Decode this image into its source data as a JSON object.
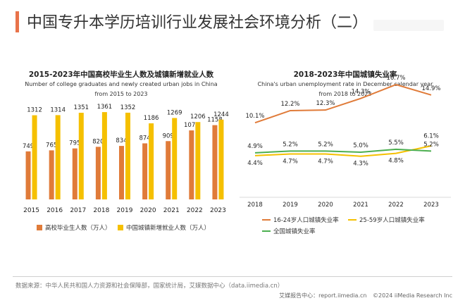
{
  "page": {
    "title": "中国专升本学历培训行业发展社会环境分析（二）",
    "source": "数据来源：中华人民共和国人力资源和社会保障部，国家统计局，艾媒数据中心（data.iimedia.cn）",
    "footer_site": "艾媒报告中心：report.iimedia.cn",
    "footer_copyright": "©2024  iiMedia Research  Inc"
  },
  "colors": {
    "accent": "#e8734a",
    "orange": "#e07b39",
    "yellow": "#f5c000",
    "green": "#4caf50"
  },
  "chart_data": [
    {
      "type": "bar",
      "title": "2015-2023年中国高校毕业生人数及城镇新增就业人数",
      "subtitle_line1": "Number of college graduates and newly created urban jobs in China",
      "subtitle_line2": "from 2015 to 2023",
      "categories": [
        "2015",
        "2016",
        "2017",
        "2018",
        "2019",
        "2020",
        "2021",
        "2022",
        "2023"
      ],
      "series": [
        {
          "name": "高校毕业生人数（万人）",
          "color": "#e07b39",
          "values": [
            749,
            765,
            795,
            820,
            834,
            874,
            909,
            1076,
            1158
          ]
        },
        {
          "name": "中国城镇新增就业人数（万人）",
          "color": "#f5c000",
          "values": [
            1312,
            1314,
            1351,
            1361,
            1352,
            1186,
            1269,
            1206,
            1244
          ]
        }
      ],
      "ylim": [
        0,
        1400
      ]
    },
    {
      "type": "line",
      "title": "2018-2023年中国城镇失业率",
      "subtitle_line1": "China's urban unemployment rate in December calendar year",
      "subtitle_line2": "from 2018 to 2023",
      "categories": [
        "2018",
        "2019",
        "2020",
        "2021",
        "2022",
        "2023"
      ],
      "series": [
        {
          "name": "16-24岁人口城镇失业率",
          "color": "#e07b39",
          "values": [
            10.1,
            12.2,
            12.3,
            14.3,
            16.7,
            14.9
          ]
        },
        {
          "name": "25-59岁人口城镇失业率",
          "color": "#f5c000",
          "values": [
            4.4,
            4.7,
            4.7,
            4.3,
            4.8,
            6.1
          ]
        },
        {
          "name": "全国城镇失业率",
          "color": "#4caf50",
          "values": [
            4.9,
            5.2,
            5.2,
            5.0,
            5.5,
            5.2
          ]
        }
      ],
      "ylim": [
        0,
        20
      ]
    }
  ]
}
